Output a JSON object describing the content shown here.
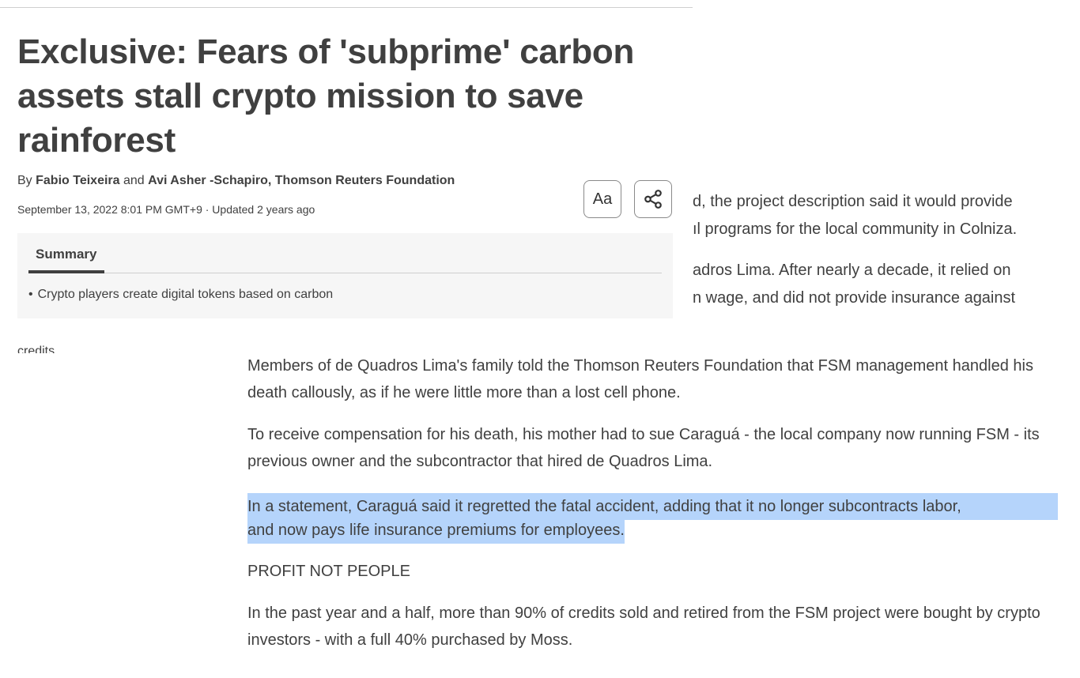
{
  "background_lines": [
    "d, the project description said it would provide",
    "ıl programs for the local community in Colniza.",
    "adros Lima. After nearly a decade, it relied on",
    "n wage, and did not provide insurance against"
  ],
  "header": {
    "headline": "Exclusive: Fears of 'subprime' carbon assets stall crypto mission to save rainforest",
    "byline": {
      "prefix": "By",
      "author1": "Fabio Teixeira",
      "conjunction": "and",
      "author2": "Avi Asher -Schapiro, Thomson Reuters Foundation"
    },
    "dateline": "September 13, 2022 8:01 PM GMT+9 · Updated 2 years ago",
    "text_size_button_label": "Aa",
    "share_icon": "share-icon"
  },
  "summary": {
    "tab_label": "Summary",
    "bullet_char": "•",
    "items": [
      "Crypto players create digital tokens based on carbon"
    ],
    "overflow_fragment": "credits"
  },
  "article": {
    "paragraphs": [
      "Members of de Quadros Lima's family told the Thomson Reuters Foundation that FSM management handled his death callously, as if he were little more than a lost cell phone.",
      "To receive compensation for his death, his mother had to sue Caraguá - the local company now running FSM - its previous owner and the subcontractor that hired de Quadros Lima."
    ],
    "highlighted_paragraph": {
      "line1": "In a statement, Caraguá said it regretted the fatal accident, adding that it no longer subcontracts labor,",
      "line2": "and now pays life insurance premiums for employees."
    },
    "subheading": "PROFIT NOT PEOPLE",
    "last_paragraph": "In the past year and a half, more than 90% of credits sold and retired from the FSM project were bought by crypto investors - with a full 40% purchased by Moss."
  },
  "colors": {
    "text": "#404040",
    "selection_highlight": "#b5d4fb",
    "summary_background": "#f6f6f6"
  }
}
